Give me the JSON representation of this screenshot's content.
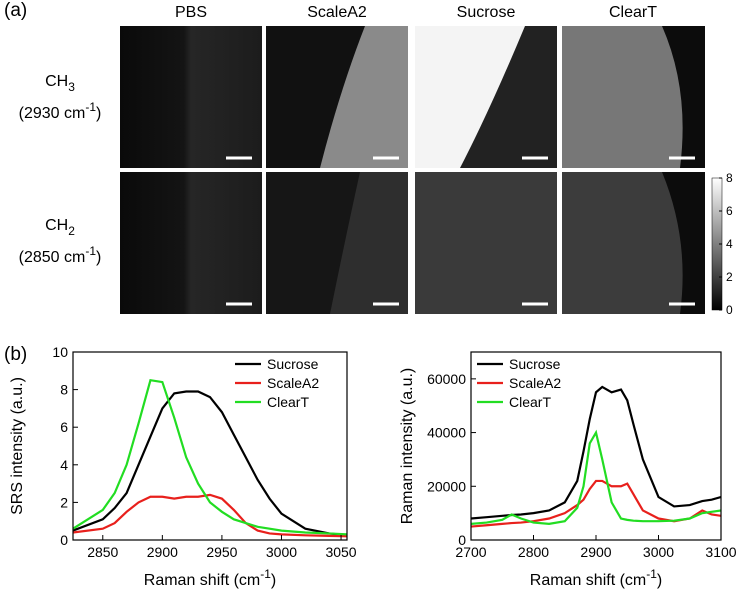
{
  "panel_labels": [
    "(a)",
    "(b)"
  ],
  "columns": [
    "PBS",
    "ScaleA2",
    "Sucrose",
    "ClearT"
  ],
  "rows": [
    {
      "name": "CH",
      "sub": "3",
      "wavenumber": "(2930 cm",
      "sup": "-1",
      "end": ")"
    },
    {
      "name": "CH",
      "sub": "2",
      "wavenumber": "(2850 cm",
      "sup": "-1",
      "end": ")"
    }
  ],
  "colorbar": {
    "lim": [
      0,
      8
    ],
    "ticks": [
      0,
      2,
      4,
      6,
      8
    ]
  },
  "chart_data": [
    {
      "type": "line",
      "y_label": "SRS intensity (a.u.)",
      "x_label": {
        "text": "Raman shift (cm",
        "sup": "-1",
        "end": ")"
      },
      "xlim": [
        2825,
        3055
      ],
      "xticks": [
        2850,
        2900,
        2950,
        3000,
        3050
      ],
      "ylim": [
        0,
        10
      ],
      "yticks": [
        0,
        2,
        4,
        6,
        8,
        10
      ],
      "legend": "upper right",
      "x": [
        2825,
        2850,
        2860,
        2870,
        2880,
        2890,
        2900,
        2910,
        2920,
        2930,
        2940,
        2950,
        2960,
        2970,
        2980,
        2990,
        3000,
        3020,
        3040,
        3055
      ],
      "series": [
        {
          "name": "Sucrose",
          "color": "#000000",
          "values": [
            0.5,
            1.1,
            1.7,
            2.5,
            4.0,
            5.5,
            7.0,
            7.8,
            7.9,
            7.9,
            7.6,
            6.8,
            5.6,
            4.4,
            3.2,
            2.2,
            1.4,
            0.6,
            0.35,
            0.25
          ]
        },
        {
          "name": "ScaleA2",
          "color": "#e8201c",
          "values": [
            0.4,
            0.6,
            0.9,
            1.5,
            2.0,
            2.3,
            2.3,
            2.2,
            2.3,
            2.3,
            2.4,
            2.2,
            1.6,
            0.9,
            0.5,
            0.35,
            0.3,
            0.25,
            0.22,
            0.2
          ]
        },
        {
          "name": "ClearT",
          "color": "#22dd22",
          "values": [
            0.6,
            1.6,
            2.5,
            4.0,
            6.2,
            8.5,
            8.4,
            6.5,
            4.4,
            3.0,
            2.0,
            1.5,
            1.1,
            0.9,
            0.7,
            0.6,
            0.5,
            0.4,
            0.35,
            0.3
          ]
        }
      ]
    },
    {
      "type": "line",
      "y_label": "Raman intensity (a.u.)",
      "x_label": {
        "text": "Raman shift (cm",
        "sup": "-1",
        "end": ")"
      },
      "xlim": [
        2700,
        3100
      ],
      "xticks": [
        2700,
        2800,
        2900,
        3000,
        3100
      ],
      "ylim": [
        0,
        70000
      ],
      "yticks": [
        0,
        20000,
        40000,
        60000
      ],
      "legend": "upper left",
      "x": [
        2700,
        2725,
        2750,
        2765,
        2780,
        2800,
        2825,
        2850,
        2870,
        2880,
        2890,
        2900,
        2910,
        2925,
        2940,
        2950,
        2960,
        2975,
        3000,
        3025,
        3050,
        3070,
        3085,
        3100
      ],
      "series": [
        {
          "name": "Sucrose",
          "color": "#000000",
          "values": [
            8000,
            8500,
            9000,
            9300,
            9500,
            10000,
            11000,
            14000,
            22000,
            33000,
            45000,
            55000,
            57000,
            55000,
            56000,
            52000,
            43000,
            30000,
            16000,
            12500,
            13000,
            14500,
            15000,
            16000
          ]
        },
        {
          "name": "ScaleA2",
          "color": "#e8201c",
          "values": [
            5000,
            5500,
            6000,
            6300,
            6500,
            7000,
            8000,
            10000,
            13000,
            15000,
            19000,
            22000,
            22000,
            20000,
            20000,
            21000,
            17000,
            11000,
            8000,
            7000,
            8000,
            11000,
            9500,
            9000
          ]
        },
        {
          "name": "ClearT",
          "color": "#22dd22",
          "values": [
            6000,
            6500,
            7500,
            9500,
            8000,
            6500,
            6000,
            7000,
            12000,
            20000,
            36000,
            40000,
            30000,
            14000,
            8000,
            7500,
            7200,
            7000,
            7000,
            7200,
            8000,
            10000,
            10500,
            11000
          ]
        }
      ]
    }
  ]
}
